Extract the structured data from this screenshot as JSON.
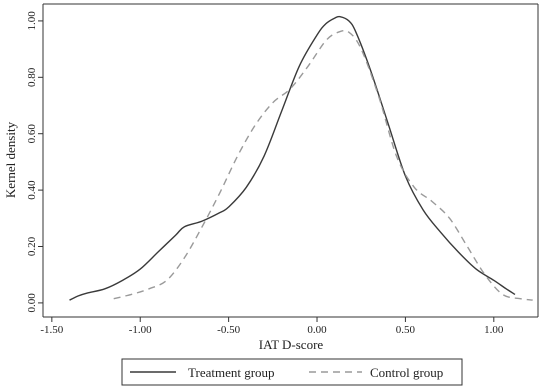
{
  "chart_data": {
    "type": "line",
    "title": "",
    "xlabel": "IAT D-score",
    "ylabel": "Kernel density",
    "xlim": [
      -1.55,
      1.25
    ],
    "ylim": [
      -0.05,
      1.06
    ],
    "x_ticks": [
      -1.5,
      -1.0,
      -0.5,
      0.0,
      0.5,
      1.0
    ],
    "x_tick_labels": [
      "-1.50",
      "-1.00",
      "-0.50",
      "0.00",
      "0.50",
      "1.00"
    ],
    "y_ticks": [
      0.0,
      0.2,
      0.4,
      0.6,
      0.8,
      1.0
    ],
    "y_tick_labels": [
      "0.00",
      "0.20",
      "0.40",
      "0.60",
      "0.80",
      "1.00"
    ],
    "grid": false,
    "legend_position": "bottom",
    "series": [
      {
        "name": "Treatment group",
        "style": "solid",
        "color": "#3a3a3a",
        "x": [
          -1.4,
          -1.35,
          -1.3,
          -1.2,
          -1.1,
          -1.0,
          -0.9,
          -0.8,
          -0.75,
          -0.65,
          -0.55,
          -0.5,
          -0.4,
          -0.3,
          -0.2,
          -0.1,
          0.0,
          0.05,
          0.1,
          0.13,
          0.18,
          0.22,
          0.3,
          0.4,
          0.5,
          0.6,
          0.7,
          0.8,
          0.9,
          1.0,
          1.07,
          1.12
        ],
        "y": [
          0.01,
          0.025,
          0.035,
          0.05,
          0.08,
          0.12,
          0.18,
          0.24,
          0.27,
          0.29,
          0.32,
          0.34,
          0.41,
          0.52,
          0.68,
          0.84,
          0.95,
          0.99,
          1.01,
          1.015,
          1.0,
          0.96,
          0.83,
          0.64,
          0.45,
          0.33,
          0.25,
          0.18,
          0.12,
          0.08,
          0.05,
          0.03
        ]
      },
      {
        "name": "Control group",
        "style": "dashed",
        "color": "#9a9a9a",
        "x": [
          -1.15,
          -1.05,
          -0.95,
          -0.85,
          -0.75,
          -0.65,
          -0.55,
          -0.45,
          -0.35,
          -0.25,
          -0.15,
          -0.05,
          0.05,
          0.12,
          0.18,
          0.25,
          0.35,
          0.45,
          0.55,
          0.65,
          0.75,
          0.85,
          0.95,
          1.05,
          1.15,
          1.22
        ],
        "y": [
          0.015,
          0.03,
          0.05,
          0.08,
          0.16,
          0.27,
          0.39,
          0.52,
          0.63,
          0.71,
          0.76,
          0.84,
          0.93,
          0.96,
          0.96,
          0.9,
          0.73,
          0.52,
          0.41,
          0.36,
          0.3,
          0.2,
          0.1,
          0.03,
          0.015,
          0.01
        ]
      }
    ]
  }
}
